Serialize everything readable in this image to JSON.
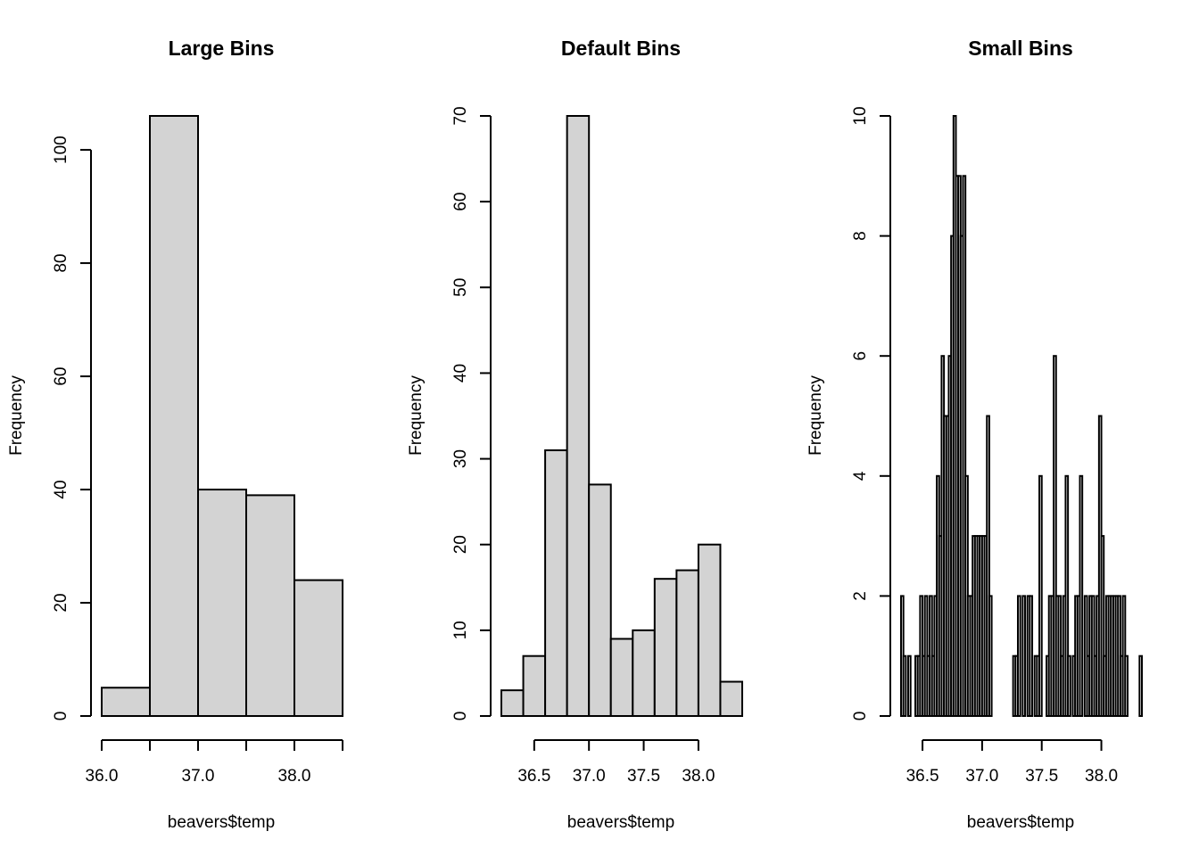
{
  "figure": {
    "background": "#ffffff",
    "bar_fill": "#d3d3d3",
    "bar_stroke": "#000000"
  },
  "chart_data": [
    {
      "type": "bar",
      "title": "Large Bins",
      "xlabel": "beavers$temp",
      "ylabel": "Frequency",
      "bin_edges": [
        36.0,
        36.5,
        37.0,
        37.5,
        38.0,
        38.5
      ],
      "values": [
        5,
        106,
        40,
        39,
        24
      ],
      "xlim": [
        36.0,
        38.5
      ],
      "ylim": [
        0,
        106
      ],
      "xticks": [
        36.0,
        36.5,
        37.0,
        37.5,
        38.0,
        38.5
      ],
      "xtick_labels": [
        "36.0",
        "",
        "37.0",
        "",
        "38.0",
        ""
      ],
      "yticks": [
        0,
        20,
        40,
        60,
        80,
        100
      ],
      "ytick_labels": [
        "0",
        "20",
        "40",
        "60",
        "80",
        "100"
      ]
    },
    {
      "type": "bar",
      "title": "Default Bins",
      "xlabel": "beavers$temp",
      "ylabel": "Frequency",
      "bin_edges": [
        36.2,
        36.4,
        36.6,
        36.8,
        37.0,
        37.2,
        37.4,
        37.6,
        37.8,
        38.0,
        38.2,
        38.4
      ],
      "values": [
        3,
        7,
        31,
        70,
        27,
        9,
        10,
        16,
        17,
        20,
        4
      ],
      "xlim": [
        36.2,
        38.4
      ],
      "ylim": [
        0,
        70
      ],
      "xticks": [
        36.5,
        37.0,
        37.5,
        38.0
      ],
      "xtick_labels": [
        "36.5",
        "37.0",
        "37.5",
        "38.0"
      ],
      "yticks": [
        0,
        10,
        20,
        30,
        40,
        50,
        60,
        70
      ],
      "ytick_labels": [
        "0",
        "10",
        "20",
        "30",
        "40",
        "50",
        "60",
        "70"
      ]
    },
    {
      "type": "bar",
      "title": "Small Bins",
      "xlabel": "beavers$temp",
      "ylabel": "Frequency",
      "bin_start": 36.32,
      "bin_width": 0.02,
      "values": [
        2,
        1,
        0,
        1,
        0,
        0,
        1,
        1,
        2,
        1,
        2,
        1,
        2,
        1,
        2,
        4,
        3,
        6,
        5,
        5,
        6,
        8,
        10,
        9,
        9,
        8,
        9,
        4,
        2,
        2,
        3,
        3,
        3,
        3,
        3,
        3,
        5,
        2,
        0,
        0,
        0,
        0,
        0,
        0,
        0,
        0,
        0,
        1,
        1,
        2,
        0,
        2,
        0,
        2,
        2,
        0,
        1,
        1,
        4,
        0,
        0,
        1,
        2,
        2,
        6,
        2,
        2,
        1,
        2,
        4,
        1,
        0,
        1,
        2,
        2,
        4,
        0,
        2,
        1,
        2,
        2,
        1,
        2,
        5,
        3,
        1,
        2,
        2,
        2,
        2,
        2,
        2,
        1,
        2,
        1,
        0,
        0,
        0,
        0,
        0,
        1
      ],
      "xlim": [
        36.32,
        38.34
      ],
      "ylim": [
        0,
        10
      ],
      "xticks": [
        36.5,
        37.0,
        37.5,
        38.0
      ],
      "xtick_labels": [
        "36.5",
        "37.0",
        "37.5",
        "38.0"
      ],
      "yticks": [
        0,
        2,
        4,
        6,
        8,
        10
      ],
      "ytick_labels": [
        "0",
        "2",
        "4",
        "6",
        "8",
        "10"
      ]
    }
  ]
}
